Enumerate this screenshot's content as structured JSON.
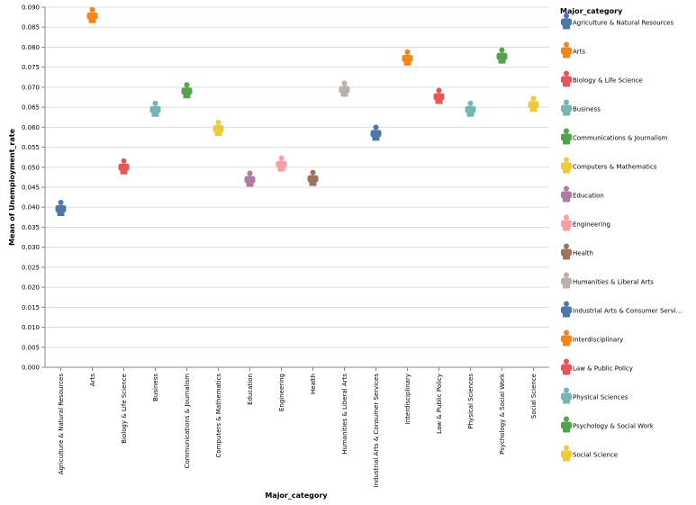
{
  "chart_data": {
    "type": "scatter",
    "mark": "person-shape",
    "title": "",
    "xlabel": "Major_category",
    "ylabel": "Mean of Unemployment_rate",
    "ylim": [
      0,
      0.09
    ],
    "y_ticks": [
      "0.000",
      "0.005",
      "0.010",
      "0.015",
      "0.020",
      "0.025",
      "0.030",
      "0.035",
      "0.040",
      "0.045",
      "0.050",
      "0.055",
      "0.060",
      "0.065",
      "0.070",
      "0.075",
      "0.080",
      "0.085",
      "0.090"
    ],
    "grid": true,
    "legend_position": "right",
    "legend_title": "Major_category",
    "categories": [
      "Agriculture & Natural Resources",
      "Arts",
      "Biology & Life Science",
      "Business",
      "Communications & Journalism",
      "Computers & Mathematics",
      "Education",
      "Engineering",
      "Health",
      "Humanities & Liberal Arts",
      "Industrial Arts & Consumer Services",
      "Interdisciplinary",
      "Law & Public Policy",
      "Physical Sciences",
      "Psychology & Social Work",
      "Social Science"
    ],
    "legend_labels": [
      "Agriculture & Natural Resources",
      "Arts",
      "Biology & Life Science",
      "Business",
      "Communications & Journalism",
      "Computers & Mathematics",
      "Education",
      "Engineering",
      "Health",
      "Humanities & Liberal Arts",
      "Industrial Arts & Consumer Servi…",
      "Interdisciplinary",
      "Law & Public Policy",
      "Physical Sciences",
      "Psychology & Social Work",
      "Social Science"
    ],
    "values": [
      0.0395,
      0.0877,
      0.0499,
      0.0643,
      0.0689,
      0.0595,
      0.0468,
      0.0506,
      0.047,
      0.0693,
      0.0583,
      0.0771,
      0.0675,
      0.0643,
      0.0776,
      0.0655
    ],
    "colors": [
      "#4c78a8",
      "#f58518",
      "#e45756",
      "#72b7b2",
      "#54a24b",
      "#eeca3b",
      "#b279a2",
      "#ff9da6",
      "#9d755d",
      "#bab0ac",
      "#4c78a8",
      "#f58518",
      "#e45756",
      "#72b7b2",
      "#54a24b",
      "#eeca3b"
    ]
  }
}
